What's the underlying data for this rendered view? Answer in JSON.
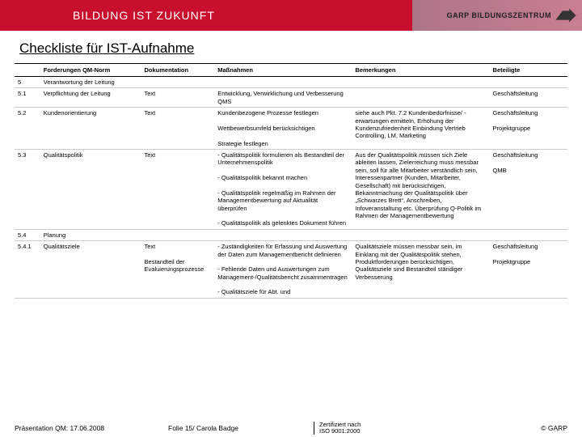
{
  "header": {
    "motto": "BILDUNG IST ZUKUNFT",
    "brand": "GARP BILDUNGSZENTRUM"
  },
  "title": "Checkliste für IST-Aufnahme",
  "columns": {
    "c1": "",
    "c2": "Forderungen QM-Norm",
    "c3": "Dokumentation",
    "c4": "Maßnahmen",
    "c5": "Bemerkungen",
    "c6": "Beteiligte"
  },
  "rows": [
    {
      "num": "5",
      "ford": "Verantwortung der Leitung",
      "dok": "",
      "mass": "",
      "bem": "",
      "bet": ""
    },
    {
      "num": "5.1",
      "ford": "Verpflichtung der Leitung",
      "dok": "Text",
      "mass": "Entwicklung, Verwirklichung und Verbesserung QMS",
      "bem": "",
      "bet": "Geschäftsleitung"
    },
    {
      "num": "5.2",
      "ford": "Kundenorientierung",
      "dok": "Text",
      "mass": "Kundenbezogene Prozesse festlegen\n\nWettbewerbsumfeld berücksichtigen\n\nStrategie festlegen",
      "bem": "siehe auch Pkt. 7.2 Kundenbedürfnisse/ -erwartungen ermitteln, Erhöhung der Kundenzufriedenheit Einbindung Vertrieb Controlling, LM, Marketing",
      "bet": "Geschäftsleitung\n\nProjektgruppe"
    },
    {
      "num": "5.3",
      "ford": "Qualitätspolitik",
      "dok": "Text",
      "mass": "- Qualitätspolitik formulieren als Bestandteil der Unternehmenspolitik\n\n- Qualitätspolitik bekannt machen\n\n- Qualitätspolitik regelmäßig im Rahmen der Managementbewertung auf Aktualität überprüfen\n\n- Qualitätspolitik als gelenktes Dokument führen",
      "bem": "Aus der Qualitätspolitik müssen sich Ziele ableiten lassen, Zielerreichung muss messbar sein, soll für alle Mitarbeiter verständlich sein, Interessenpartner (Kunden, Mitarbeiter, Gesellschaft) mit berücksichtigen, Bekanntmachung der Qualitätspolitik über „Schwarzes Brett“, Anschreiben, Infoveranstaltung etc. Überprüfung Q-Politik im Rahmen der Managementbewertung",
      "bet": "Geschäftsleitung\n\nQMB"
    },
    {
      "num": "5.4",
      "ford": "Planung",
      "dok": "",
      "mass": "",
      "bem": "",
      "bet": ""
    },
    {
      "num": "5.4.1",
      "ford": "Qualitätsziele",
      "dok": "Text\n\nBestandteil der Evaluierungsprozesse",
      "mass": "- Zuständigkeiten für Erfassung und Auswertung der Daten zum Managementbericht definieren\n\n- Fehlende Daten und Auswertungen zum Management-/Qualitätsbericht zusammentragen\n\n- Qualitätsziele für Abt. und",
      "bem": "Qualitätsziele müssen messbar sein, im Einklang mit der Qualitätspolitik stehen, Produktforderungen berücksichtigen, Qualitätsziele sind Bestandteil ständiger Verbesserung",
      "bet": "Geschäftsleitung\n\nProjektgruppe"
    }
  ],
  "footer": {
    "left": "Präsentation QM: 17.06.2008",
    "mid": "Folie 15/ Carola Badge",
    "cert1": "Zertifiziert nach",
    "cert2": "ISO 9001:2000",
    "right": "© GARP"
  },
  "colors": {
    "brand_red": "#c8102e",
    "text": "#000000",
    "border": "#000000",
    "row_border": "#cccccc"
  }
}
